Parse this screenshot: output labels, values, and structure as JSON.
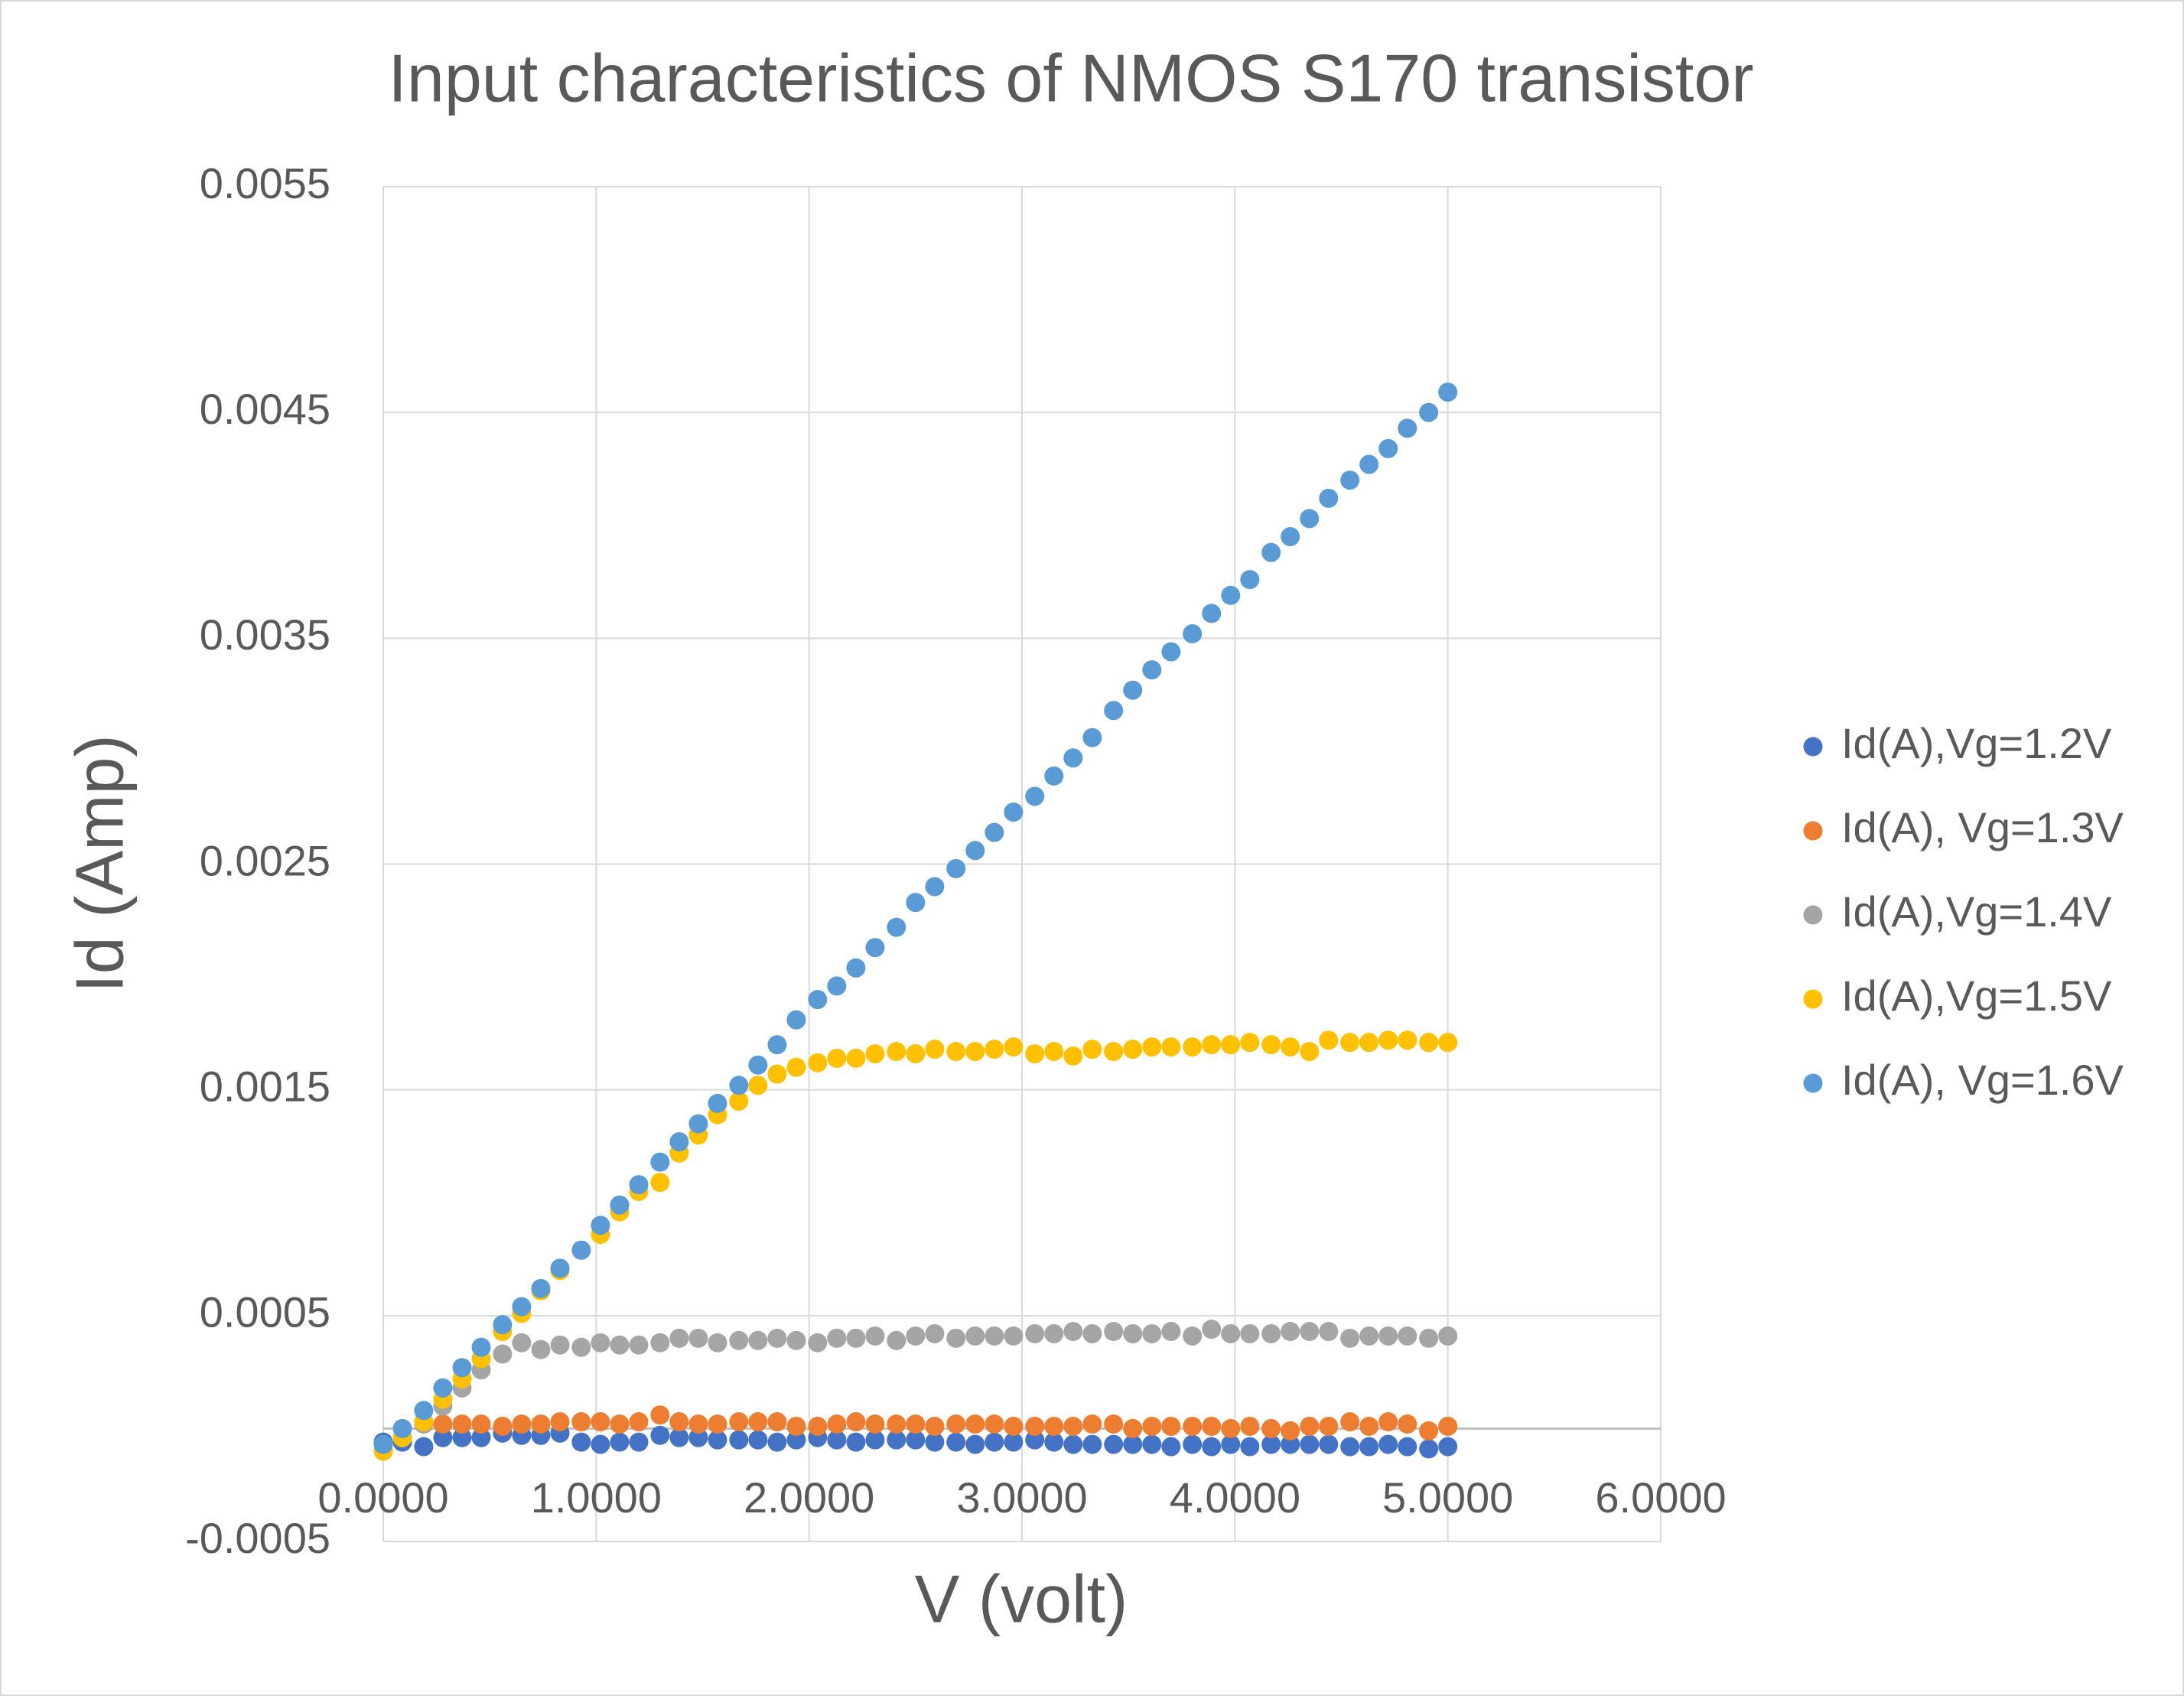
{
  "chart_data": {
    "type": "scatter",
    "title": "Input characteristics of NMOS S170 transistor",
    "x_label": "V (volt)",
    "y_label": "Id (Amp)",
    "xlim": [
      0,
      6
    ],
    "xticks": [
      {
        "value": 0,
        "label": "0.0000"
      },
      {
        "value": 1,
        "label": "1.0000"
      },
      {
        "value": 2,
        "label": "2.0000"
      },
      {
        "value": 3,
        "label": "3.0000"
      },
      {
        "value": 4,
        "label": "4.0000"
      },
      {
        "value": 5,
        "label": "5.0000"
      },
      {
        "value": 6,
        "label": "6.0000"
      }
    ],
    "ylim": [
      -0.0005,
      0.0055
    ],
    "yticks": [
      -0.0005,
      0.0005,
      0.0015,
      0.0025,
      0.0035,
      0.0045,
      0.0055
    ],
    "grid": true,
    "legend": "right",
    "x": [
      0,
      0.09,
      0.19,
      0.28,
      0.37,
      0.46,
      0.56,
      0.65,
      0.74,
      0.83,
      0.93,
      1.02,
      1.11,
      1.2,
      1.3,
      1.39,
      1.48,
      1.57,
      1.67,
      1.76,
      1.85,
      1.94,
      2.04,
      2.13,
      2.22,
      2.31,
      2.41,
      2.5,
      2.59,
      2.69,
      2.78,
      2.87,
      2.96,
      3.06,
      3.15,
      3.24,
      3.33,
      3.43,
      3.52,
      3.61,
      3.7,
      3.8,
      3.89,
      3.98,
      4.07,
      4.17,
      4.26,
      4.35,
      4.44,
      4.54,
      4.63,
      4.72,
      4.81,
      4.91,
      5.0
    ],
    "series": [
      {
        "name": "Id(A),Vg=1.2V",
        "color": "#4472c4",
        "values": [
          -6e-05,
          -6e-05,
          -8e-05,
          -4e-05,
          -4e-05,
          -4e-05,
          -2e-05,
          -3e-05,
          -3e-05,
          -2e-05,
          -6e-05,
          -7e-05,
          -6e-05,
          -6e-05,
          -3e-05,
          -4e-05,
          -4e-05,
          -5e-05,
          -5e-05,
          -5e-05,
          -6e-05,
          -5e-05,
          -4e-05,
          -5e-05,
          -6e-05,
          -5e-05,
          -5e-05,
          -5e-05,
          -6e-05,
          -6e-05,
          -7e-05,
          -6e-05,
          -6e-05,
          -5e-05,
          -6e-05,
          -7e-05,
          -7e-05,
          -7e-05,
          -7e-05,
          -7e-05,
          -8e-05,
          -7e-05,
          -8e-05,
          -7e-05,
          -8e-05,
          -7e-05,
          -7e-05,
          -7e-05,
          -7e-05,
          -8e-05,
          -8e-05,
          -7e-05,
          -8e-05,
          -9e-05,
          -8e-05
        ]
      },
      {
        "name": "Id(A), Vg=1.3V",
        "color": "#ed7d31",
        "values": [
          -0.0001,
          -4e-05,
          2e-05,
          2e-05,
          2e-05,
          2e-05,
          1e-05,
          2e-05,
          2e-05,
          3e-05,
          3e-05,
          3e-05,
          2e-05,
          3e-05,
          6e-05,
          3e-05,
          2e-05,
          2e-05,
          3e-05,
          3e-05,
          3e-05,
          1e-05,
          1e-05,
          2e-05,
          3e-05,
          2e-05,
          2e-05,
          2e-05,
          1e-05,
          2e-05,
          2e-05,
          2e-05,
          1e-05,
          1e-05,
          1e-05,
          1e-05,
          2e-05,
          2e-05,
          0,
          1e-05,
          1e-05,
          1e-05,
          1e-05,
          0,
          1e-05,
          0,
          -1e-05,
          1e-05,
          1e-05,
          3e-05,
          1e-05,
          3e-05,
          2e-05,
          -1e-05,
          1e-05
        ]
      },
      {
        "name": "Id(A),Vg=1.4V",
        "color": "#a5a5a5",
        "values": [
          -0.0001,
          -4e-05,
          2e-05,
          0.0001,
          0.00018,
          0.00026,
          0.00033,
          0.00038,
          0.00035,
          0.00037,
          0.00036,
          0.00038,
          0.00037,
          0.00037,
          0.00038,
          0.0004,
          0.0004,
          0.00038,
          0.00039,
          0.00039,
          0.0004,
          0.00039,
          0.00038,
          0.0004,
          0.0004,
          0.00041,
          0.00039,
          0.00041,
          0.00042,
          0.0004,
          0.00041,
          0.00041,
          0.00041,
          0.00042,
          0.00042,
          0.00043,
          0.00042,
          0.00043,
          0.00042,
          0.00042,
          0.00043,
          0.00041,
          0.00044,
          0.00042,
          0.00042,
          0.00042,
          0.00043,
          0.00043,
          0.00043,
          0.0004,
          0.00041,
          0.00041,
          0.00041,
          0.0004,
          0.00041
        ]
      },
      {
        "name": "Id(A),Vg=1.5V",
        "color": "#ffc000",
        "values": [
          -0.0001,
          -4e-05,
          3e-05,
          0.00013,
          0.00022,
          0.00031,
          0.00043,
          0.00051,
          0.00061,
          0.0007,
          0.00079,
          0.00086,
          0.00096,
          0.00105,
          0.00109,
          0.00122,
          0.0013,
          0.00139,
          0.00145,
          0.00152,
          0.00157,
          0.0016,
          0.00162,
          0.00164,
          0.00164,
          0.00166,
          0.00167,
          0.00166,
          0.00168,
          0.00167,
          0.00167,
          0.00168,
          0.00169,
          0.00166,
          0.00167,
          0.00165,
          0.00168,
          0.00167,
          0.00168,
          0.00169,
          0.00169,
          0.00169,
          0.0017,
          0.0017,
          0.00171,
          0.0017,
          0.00169,
          0.00167,
          0.00172,
          0.00171,
          0.00171,
          0.00172,
          0.00172,
          0.00171,
          0.00171
        ]
      },
      {
        "name": "Id(A), Vg=1.6V",
        "color": "#5b9bd5",
        "values": [
          -7e-05,
          0,
          8e-05,
          0.00018,
          0.00027,
          0.00036,
          0.00046,
          0.00054,
          0.00062,
          0.00071,
          0.00079,
          0.0009,
          0.00099,
          0.00108,
          0.00118,
          0.00127,
          0.00135,
          0.00144,
          0.00152,
          0.00161,
          0.0017,
          0.00181,
          0.0019,
          0.00196,
          0.00204,
          0.00213,
          0.00222,
          0.00233,
          0.0024,
          0.00248,
          0.00256,
          0.00264,
          0.00273,
          0.0028,
          0.00289,
          0.00297,
          0.00306,
          0.00318,
          0.00327,
          0.00336,
          0.00344,
          0.00352,
          0.00361,
          0.00369,
          0.00376,
          0.00388,
          0.00395,
          0.00403,
          0.00412,
          0.0042,
          0.00427,
          0.00434,
          0.00443,
          0.0045,
          0.00459
        ]
      }
    ]
  }
}
